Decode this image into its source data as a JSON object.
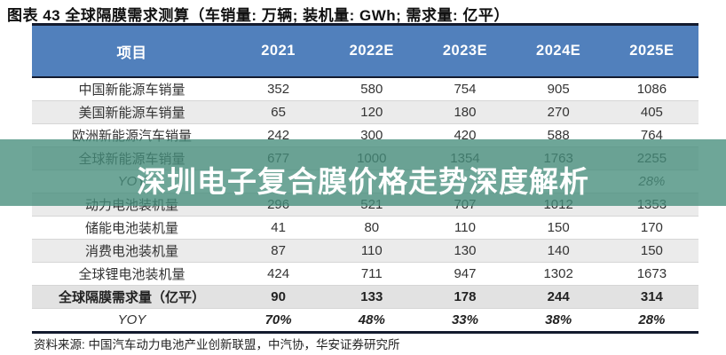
{
  "chart_data": {
    "type": "table",
    "title": "图表 43 全球隔膜需求测算（车销量: 万辆; 装机量: GWh; 需求量: 亿平）",
    "columns": [
      "项目",
      "2021",
      "2022E",
      "2023E",
      "2024E",
      "2025E"
    ],
    "rows": [
      {
        "label": "中国新能源车销量",
        "values": [
          "352",
          "580",
          "754",
          "905",
          "1086"
        ]
      },
      {
        "label": "美国新能源车销量",
        "values": [
          "65",
          "120",
          "180",
          "270",
          "405"
        ]
      },
      {
        "label": "欧洲新能源汽车销量",
        "values": [
          "242",
          "300",
          "420",
          "588",
          "764"
        ]
      },
      {
        "label": "全球新能源车销量",
        "values": [
          "677",
          "1000",
          "1354",
          "1763",
          "2255"
        ]
      },
      {
        "label": "YOY",
        "values": [
          "",
          "",
          "",
          "",
          "28%"
        ]
      },
      {
        "label": "动力电池装机量",
        "values": [
          "296",
          "521",
          "707",
          "1012",
          "1353"
        ]
      },
      {
        "label": "储能电池装机量",
        "values": [
          "41",
          "80",
          "110",
          "150",
          "170"
        ]
      },
      {
        "label": "消费电池装机量",
        "values": [
          "87",
          "110",
          "130",
          "140",
          "150"
        ]
      },
      {
        "label": "全球锂电池装机量",
        "values": [
          "424",
          "711",
          "947",
          "1302",
          "1673"
        ]
      },
      {
        "label": "全球隔膜需求量（亿平）",
        "values": [
          "90",
          "133",
          "178",
          "244",
          "314"
        ]
      },
      {
        "label": "YOY",
        "values": [
          "70%",
          "48%",
          "33%",
          "38%",
          "28%"
        ]
      }
    ],
    "source": "资料来源: 中国汽车动力电池产业创新联盟，中汽协，华安证券研究所"
  },
  "watermark": {
    "text": "深圳电子复合膜价格走势深度解析"
  },
  "colors": {
    "header_bg": "#5180bc",
    "header_text": "#ffffff",
    "row_alt_bg": "#ebebeb",
    "highlight_row_bg": "#e2e2e2",
    "border_dark": "#131b2e",
    "watermark_band": "rgba(69,141,123,0.78)",
    "watermark_text": "#ffffff"
  }
}
